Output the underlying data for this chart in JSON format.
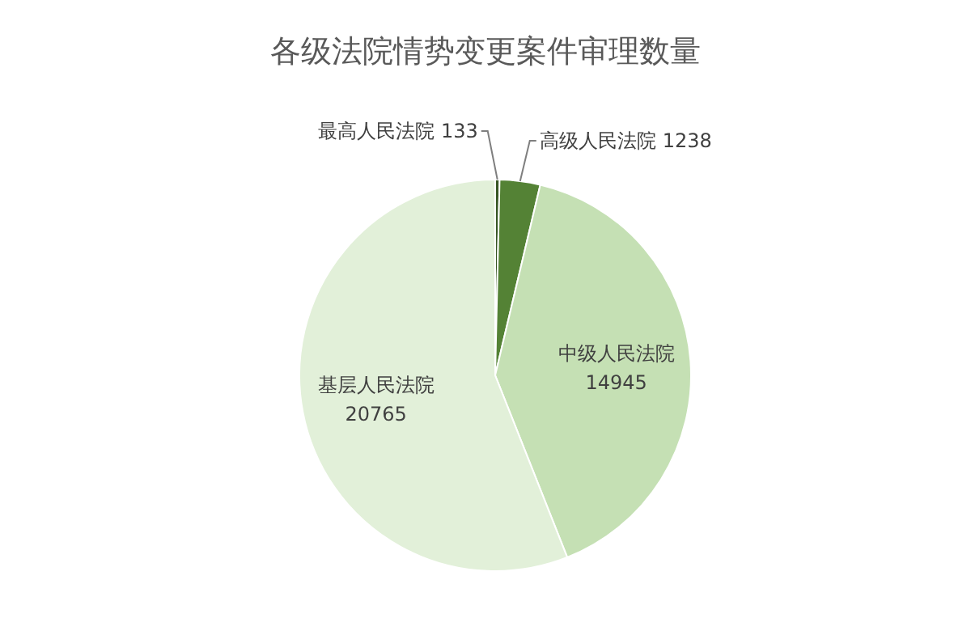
{
  "chart_data": {
    "type": "pie",
    "title": "各级法院情势变更案件审理数量",
    "categories": [
      "最高人民法院",
      "高级人民法院",
      "中级人民法院",
      "基层人民法院"
    ],
    "values": [
      133,
      1238,
      14945,
      20765
    ],
    "colors": [
      "#375623",
      "#548235",
      "#c5e0b4",
      "#e2f0d9"
    ],
    "data_labels": true
  }
}
